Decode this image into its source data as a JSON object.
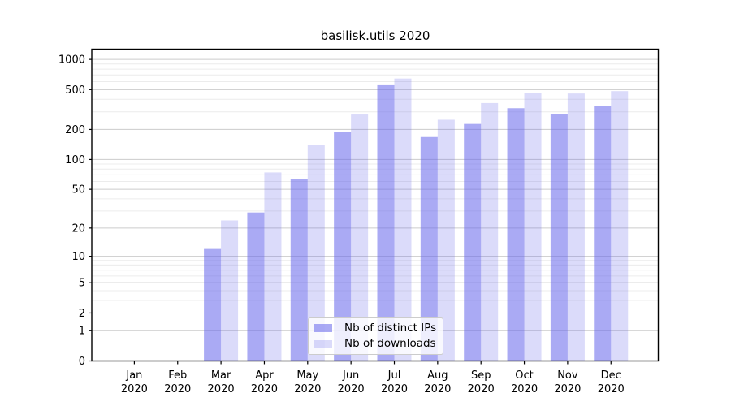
{
  "chart_data": {
    "type": "bar",
    "title": "basilisk.utils 2020",
    "xlabel": "",
    "ylabel": "",
    "categories": [
      "Jan",
      "Feb",
      "Mar",
      "Apr",
      "May",
      "Jun",
      "Jul",
      "Aug",
      "Sep",
      "Oct",
      "Nov",
      "Dec"
    ],
    "category_year_label": "2020",
    "series": [
      {
        "name": "Nb of distinct IPs",
        "color": "rgba(100,100,235,0.55)",
        "values": [
          0,
          0,
          12,
          29,
          63,
          189,
          553,
          168,
          227,
          326,
          284,
          340
        ]
      },
      {
        "name": "Nb of downloads",
        "color": "rgba(100,100,235,0.23)",
        "values": [
          0,
          0,
          24,
          74,
          139,
          282,
          645,
          250,
          367,
          465,
          457,
          483
        ]
      }
    ],
    "y_scale": "log1p",
    "y_ticks": [
      0,
      1,
      2,
      5,
      10,
      20,
      50,
      100,
      200,
      500,
      1000
    ],
    "y_minor_ticks": [
      3,
      4,
      6,
      7,
      8,
      9,
      30,
      40,
      60,
      70,
      80,
      90,
      300,
      400,
      600,
      700,
      800,
      900
    ],
    "ylim": [
      0,
      1265
    ],
    "grid": {
      "enabled": true,
      "major_color": "#cccccc",
      "minor_color": "#ececec"
    },
    "axis_color": "#000000",
    "legend": {
      "position": "lower center",
      "background": "rgba(255,255,255,0.8)",
      "border_color": "#cccccc"
    }
  }
}
